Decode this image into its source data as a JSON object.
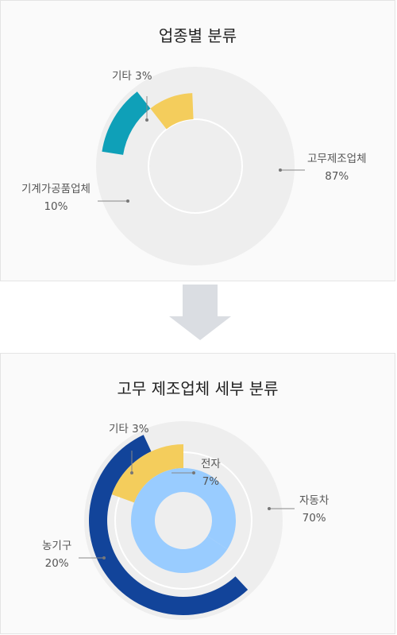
{
  "chart_data": [
    {
      "type": "pie",
      "title": "업종별 분류",
      "slices": [
        {
          "label": "고무제조업체",
          "value": 87,
          "value_label": "87%",
          "color": "#eeeeee"
        },
        {
          "label": "기계가공품업체",
          "value": 10,
          "value_label": "10%",
          "color": "#0fa0b8"
        },
        {
          "label": "기타",
          "value": 3,
          "value_label": "3%",
          "color": "#f4cd5c"
        }
      ]
    },
    {
      "type": "pie",
      "title": "고무 제조업체 세부 분류",
      "slices": [
        {
          "label": "자동차",
          "value": 70,
          "value_label": "70%",
          "color": "#eeeeee"
        },
        {
          "label": "농기구",
          "value": 20,
          "value_label": "20%",
          "color": "#12449a"
        },
        {
          "label": "기타",
          "value": 3,
          "value_label": "3%",
          "color": "#f4cd5c"
        },
        {
          "label": "전자",
          "value": 7,
          "value_label": "7%",
          "color": "#99ccff"
        }
      ]
    }
  ]
}
